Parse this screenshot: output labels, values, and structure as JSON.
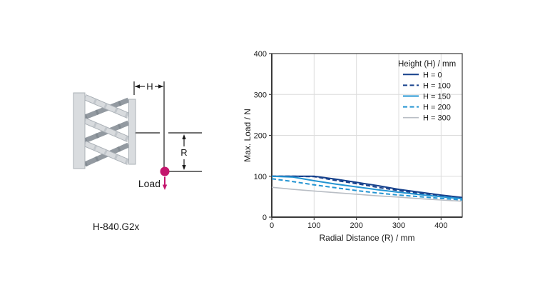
{
  "page": {
    "background": "#ffffff"
  },
  "diagram": {
    "model_label": "H-840.G2x",
    "dim_h_label": "H",
    "dim_r_label": "R",
    "load_label": "Load",
    "load_color": "#c4156d",
    "line_color": "#1a1a1a",
    "plate_fill": "#d9dcdf",
    "plate_border": "#aab0b6",
    "strut_light": "#d8dbde",
    "strut_light_border": "#aab0b6",
    "strut_light_joint": "#c2c7cc",
    "strut_dark": "#939aa1",
    "strut_dark_joint": "#828a91"
  },
  "chart_data": {
    "type": "line",
    "title": "",
    "xlabel": "Radial Distance (R) / mm",
    "ylabel": "Max. Load / N",
    "xlim": [
      0,
      450
    ],
    "ylim": [
      0,
      400
    ],
    "xticks": [
      0,
      100,
      200,
      300,
      400
    ],
    "yticks": [
      0,
      100,
      200,
      300,
      400
    ],
    "grid": true,
    "legend_title": "Height (H) / mm",
    "legend_position": "top-right",
    "axis_color": "#3a3a3a",
    "grid_color": "#dcdcdc",
    "text_color": "#1a1a1a",
    "x": [
      0,
      50,
      100,
      150,
      200,
      250,
      300,
      350,
      400,
      450
    ],
    "series": [
      {
        "name": "H = 0",
        "color": "#16418c",
        "dash": "solid",
        "values": [
          100,
          100,
          100,
          93,
          85,
          77,
          68,
          61,
          54,
          48
        ]
      },
      {
        "name": "H = 100",
        "color": "#16418c",
        "dash": "dashed",
        "values": [
          100,
          100,
          99,
          90,
          82,
          73,
          65,
          58,
          52,
          46
        ]
      },
      {
        "name": "H = 150",
        "color": "#2394d2",
        "dash": "solid",
        "values": [
          100,
          98,
          89,
          81,
          74,
          67,
          61,
          55,
          50,
          45
        ]
      },
      {
        "name": "H = 200",
        "color": "#2394d2",
        "dash": "dashed",
        "values": [
          94,
          87,
          79,
          72,
          65,
          59,
          54,
          50,
          46,
          42
        ]
      },
      {
        "name": "H = 300",
        "color": "#b9bec5",
        "dash": "solid",
        "values": [
          73,
          68,
          64,
          60,
          56,
          52,
          49,
          45,
          42,
          39
        ]
      }
    ]
  }
}
